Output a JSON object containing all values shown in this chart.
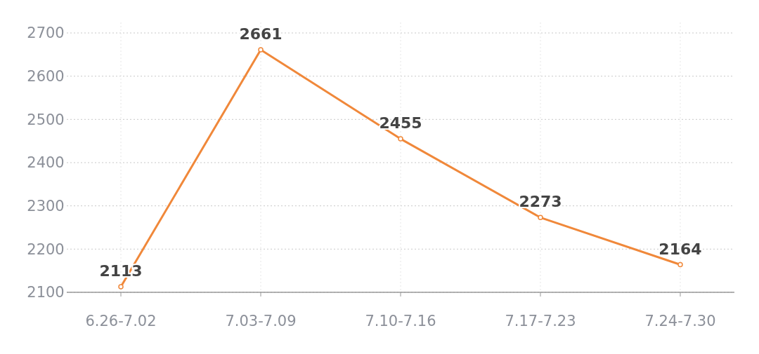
{
  "chart_data": {
    "type": "line",
    "categories": [
      "6.26-7.02",
      "7.03-7.09",
      "7.10-7.16",
      "7.17-7.23",
      "7.24-7.30"
    ],
    "series": [
      {
        "color": "#f0883a",
        "values": [
          2113,
          2661,
          2455,
          2273,
          2164
        ]
      }
    ],
    "ylim": [
      2100,
      2700
    ],
    "yticks": [
      2100,
      2200,
      2300,
      2400,
      2500,
      2600,
      2700
    ],
    "grid": true,
    "marker": "circle",
    "data_labels": true
  }
}
